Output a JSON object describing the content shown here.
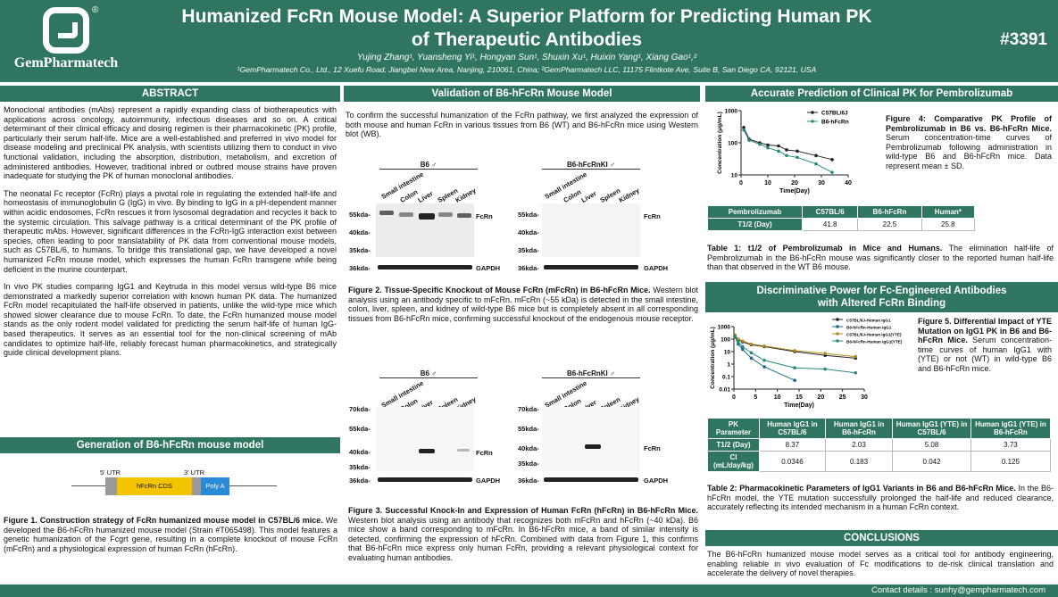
{
  "header": {
    "logo_text": "GemPharmatech",
    "logo_reg": "®",
    "title_line1": "Humanized FcRn Mouse Model: A Superior Platform for Predicting Human PK",
    "title_line2": "of Therapeutic Antibodies",
    "authors": "Yujing Zhang¹, Yuansheng Yi¹, Hongyan Sun¹, Shuxin Xu¹, Huixin Yang¹, Xiang Gao¹,²",
    "affiliations": "¹GemPharmatech Co., Ltd., 12 Xuefu Road, Jiangbei New Area, Nanjing, 210061, China; ²GemPharmatech LLC, 11175 Flintkote Ave, Suite B, San Diego CA, 92121, USA",
    "poster_number": "#3391"
  },
  "abstract": {
    "heading": "ABSTRACT",
    "p1": "Monoclonal antibodies (mAbs) represent a rapidly expanding class of biotherapeutics with applications across oncology, autoimmunity, infectious diseases and so on. A critical determinant of their clinical efficacy and dosing regimen is their pharmacokinetic (PK) profile, particularly their serum half-life. Mice are a well-established and preferred in vivo model for disease modeling and preclinical PK analysis, with scientists utilizing them to conduct in vivo functional validation, including the absorption, distribution, metabolism, and excretion of administered antibodies. However, traditional inbred or outbred mouse strains have proven inadequate for studying the PK of human monoclonal antibodies.",
    "p2": "The neonatal Fc receptor (FcRn) plays a pivotal role in regulating the extended half-life and homeostasis of immunoglobulin G (IgG) in vivo. By binding to IgG in a pH-dependent manner within acidic endosomes, FcRn rescues it from lysosomal degradation and recycles it back to the systemic circulation. This salvage pathway is a critical determinant of the PK profile of therapeutic mAbs. However, significant differences in the FcRn-IgG interaction exist between species, often leading to poor translatability of PK data from conventional mouse models, such as C57BL/6, to humans. To bridge this translational gap, we have developed a novel humanized FcRn mouse model, which expresses the human FcRn transgene while being deficient in the murine counterpart.",
    "p3": "In vivo PK studies comparing IgG1 and Keytruda in this model versus wild-type B6 mice demonstrated a markedly superior correlation with known human PK data. The humanized FcRn model recapitulated the half-life observed in patients, unlike the wild-type mice which showed slower clearance due to mouse FcRn. To date, the FcRn humanized mouse model stands as the only rodent model validated for predicting the serum half-life of human IgG-based therapeutics. It serves as an essential tool for the non-clinical screening of mAb candidates to optimize half-life, reliably forecast human pharmacokinetics, and strategically guide clinical development plans."
  },
  "generation": {
    "heading": "Generation of B6-hFcRn mouse model",
    "utr5": "5' UTR",
    "utr3": "3' UTR",
    "cds": "hFcRn CDS",
    "polya": "Poly A",
    "fig1_bold": "Figure 1. Construction strategy of FcRn humanized mouse model in C57BL/6 mice.",
    "fig1_text": " We developed the B6-hFcRn humanized mouse model (Strain #T065498). This model features a genetic humanization of the Fcgrt gene, resulting in a complete knockout of mouse FcRn (mFcRn) and a physiological expression of human FcRn (hFcRn)."
  },
  "validation": {
    "heading": "Validation of B6-hFcRn Mouse Model",
    "intro": "To confirm the successful humanization of the FcRn pathway, we first analyzed the expression of both mouse and human FcRn in various tissues from B6 (WT) and B6-hFcRn mice using Western blot (WB).",
    "blot1": {
      "left_group": "B6 ♂",
      "right_group": "B6-hFcRnKI ♂",
      "lanes": [
        "Small intestine",
        "Colon",
        "Liver",
        "Spleen",
        "Kidney"
      ],
      "markers": [
        "55kda-",
        "40kda-",
        "35kda-",
        "36kda-"
      ],
      "target": "FcRn",
      "loading": "GAPDH"
    },
    "fig2_bold": "Figure 2. Tissue-Specific Knockout of Mouse FcRn (mFcRn) in B6-hFcRn Mice.",
    "fig2_text": " Western blot analysis using an antibody specific to mFcRn. mFcRn (~55 kDa) is detected in the small intestine, colon, liver, spleen, and kidney of wild-type B6 mice but is completely absent in all corresponding tissues from B6-hFcRn mice, confirming successful knockout of the endogenous mouse receptor.",
    "blot2": {
      "left_group": "B6 ♂",
      "right_group": "B6-hFcRnKI ♂",
      "lanes": [
        "Small intestine",
        "Colon",
        "Liver",
        "Spleen",
        "Kidney"
      ],
      "markers": [
        "70kda-",
        "55kda-",
        "40kda-",
        "35kda-",
        "36kda-"
      ],
      "target": "FcRn",
      "loading": "GAPDH"
    },
    "fig3_bold": "Figure 3. Successful Knock-In and Expression of Human FcRn (hFcRn) in B6-hFcRn Mice.",
    "fig3_text": " Western blot analysis using an antibody that recognizes both mFcRn and hFcRn (~40 kDa). B6 mice show a band corresponding to mFcRn. In B6-hFcRn mice, a band of similar intensity is detected, confirming the expression of hFcRn. Combined with data from Figure 1, this confirms that B6-hFcRn mice express only human FcRn, providing a relevant physiological context for evaluating human antibodies."
  },
  "pk": {
    "heading": "Accurate Prediction of Clinical PK for Pembrolizumab",
    "fig4_bold": "Figure 4: Comparative PK Profile of Pembrolizumab in B6 vs. B6-hFcRn Mice.",
    "fig4_text": " Serum concentration-time curves of Pembrolizumab following administration in wild-type B6 and B6-hFcRn mice. Data represent mean ± SD.",
    "table1": {
      "headers": [
        "Pembrolizumab",
        "C57BL/6",
        "B6-hFcRn",
        "Human*"
      ],
      "row_label": "T1/2 (Day)",
      "values": [
        "41.8",
        "22.5",
        "25.8"
      ]
    },
    "table1_bold": "Table 1: t1/2 of Pembrolizumab in Mice and Humans.",
    "table1_text": " The elimination half-life of Pembrolizumab in the B6-hFcRn mouse was significantly closer to the reported human half-life than that observed in the WT B6 mouse."
  },
  "fc": {
    "heading_line1": "Discriminative Power for Fc-Engineered Antibodies",
    "heading_line2": "with Altered FcRn Binding",
    "fig5_bold": "Figure 5. Differential Impact of YTE Mutation on IgG1 PK in B6 and B6-hFcRn Mice.",
    "fig5_text": " Serum concentration-time curves of human IgG1 with (YTE) or not (WT) in wild-type B6 and B6-hFcRn mice.",
    "table2": {
      "headers": [
        "PK Parameter",
        "Human IgG1 in C57BL/6",
        "Human IgG1 in B6-hFcRn",
        "Human IgG1 (YTE) in C57BL/6",
        "Human IgG1 (YTE) in B6-hFcRn"
      ],
      "rows": [
        {
          "label": "T1/2 (Day)",
          "values": [
            "8.37",
            "2.03",
            "5.08",
            "3.73"
          ]
        },
        {
          "label": "Cl (mL/day/kg)",
          "values": [
            "0.0346",
            "0.183",
            "0.042",
            "0.125"
          ]
        }
      ]
    },
    "table2_bold": "Table 2: Pharmacokinetic Parameters of IgG1 Variants in B6 and B6-hFcRn Mice.",
    "table2_text": " In the B6-hFcRn model, the YTE mutation successfully prolonged the half-life and reduced clearance, accurately reflecting its intended mechanism in a human FcRn context."
  },
  "conclusions": {
    "heading": "CONCLUSIONS",
    "text": "The B6-hFcRn humanized mouse model serves as a critical tool for antibody engineering, enabling reliable in vivo evaluation of Fc modifications to de-risk clinical translation and accelerate the delivery of novel therapies."
  },
  "footer": {
    "contact": "Contact details : sunhy@gempharmatech.com"
  },
  "chart_data": [
    {
      "type": "line",
      "xlabel": "Time(Day)",
      "ylabel": "Concentration (μg/mL)",
      "xlim": [
        0,
        40
      ],
      "ylim": [
        10,
        1000
      ],
      "yscale": "log",
      "xticks": [
        0,
        10,
        20,
        30,
        40
      ],
      "yticks": [
        "10",
        "100",
        "1000"
      ],
      "legend_position": "top-right",
      "series": [
        {
          "name": "C57BL/6J",
          "color": "#222222",
          "x": [
            1,
            3,
            7,
            10,
            14,
            17,
            21,
            28,
            34
          ],
          "y": [
            300,
            130,
            100,
            85,
            80,
            60,
            55,
            40,
            30
          ]
        },
        {
          "name": "B6-hFcRn",
          "color": "#2a8a7a",
          "x": [
            1,
            3,
            7,
            10,
            14,
            17,
            21,
            28,
            34
          ],
          "y": [
            250,
            120,
            90,
            70,
            55,
            40,
            35,
            22,
            12
          ]
        }
      ]
    },
    {
      "type": "line",
      "xlabel": "Time(Day)",
      "ylabel": "Concentration (μg/mL)",
      "xlim": [
        0,
        30
      ],
      "ylim": [
        0.01,
        1000
      ],
      "yscale": "log",
      "xticks": [
        0,
        5,
        10,
        15,
        20,
        25,
        30
      ],
      "yticks": [
        "0.01",
        "0.1",
        "1",
        "10",
        "100",
        "1000"
      ],
      "legend_position": "top-right",
      "series": [
        {
          "name": "C57BL/6J-Human IgG1",
          "color": "#222222",
          "x": [
            0.2,
            1,
            2,
            4,
            7,
            14,
            21,
            28
          ],
          "y": [
            200,
            90,
            60,
            35,
            25,
            10,
            5,
            3
          ]
        },
        {
          "name": "B6-hFcRn-Human IgG1",
          "color": "#1f6a8a",
          "x": [
            0.2,
            1,
            2,
            4,
            7,
            14
          ],
          "y": [
            150,
            40,
            15,
            3,
            0.6,
            0.05
          ]
        },
        {
          "name": "C57BL/6J-Human IgG1(YTE)",
          "color": "#b08a20",
          "x": [
            0.2,
            1,
            2,
            4,
            7,
            14,
            21,
            28
          ],
          "y": [
            220,
            100,
            70,
            40,
            28,
            12,
            7,
            4
          ]
        },
        {
          "name": "B6-hFcRn-Human IgG1(YTE)",
          "color": "#2a8a7a",
          "x": [
            0.2,
            1,
            2,
            4,
            7,
            14,
            21,
            28
          ],
          "y": [
            180,
            60,
            25,
            8,
            2,
            0.5,
            0.4,
            0.2
          ]
        }
      ]
    }
  ]
}
